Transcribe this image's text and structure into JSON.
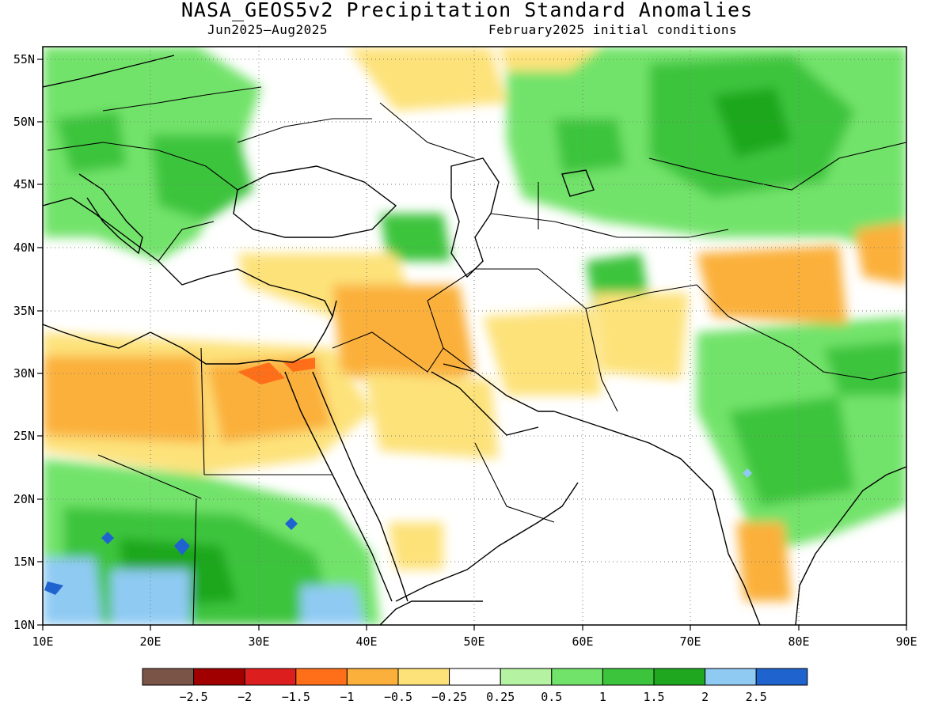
{
  "title": "NASA_GEOS5v2 Precipitation Standard Anomalies",
  "subtitle_left": "Jun2025–Aug2025",
  "subtitle_right": "February2025 initial conditions",
  "map": {
    "lon_range": [
      10,
      90
    ],
    "lat_range": [
      10,
      56
    ],
    "lon_ticks": [
      "10E",
      "20E",
      "30E",
      "40E",
      "50E",
      "60E",
      "70E",
      "80E",
      "90E"
    ],
    "lat_ticks": [
      "55N",
      "50N",
      "45N",
      "40N",
      "35N",
      "30N",
      "25N",
      "20N",
      "15N",
      "10N"
    ],
    "gridlines": "dotted"
  },
  "colorbar": {
    "colors": [
      "#7a5446",
      "#a00000",
      "#dc1e1e",
      "#ff6f1a",
      "#fbb03b",
      "#fde27a",
      "#ffffff",
      "#b5f2a2",
      "#72e36a",
      "#3dc43d",
      "#1fa71f",
      "#8fcaf3",
      "#1f63cf"
    ],
    "labels": [
      "−2.5",
      "−2",
      "−1.5",
      "−1",
      "−0.5",
      "−0.25",
      "0.25",
      "0.5",
      "1",
      "1.5",
      "2",
      "2.5"
    ]
  }
}
